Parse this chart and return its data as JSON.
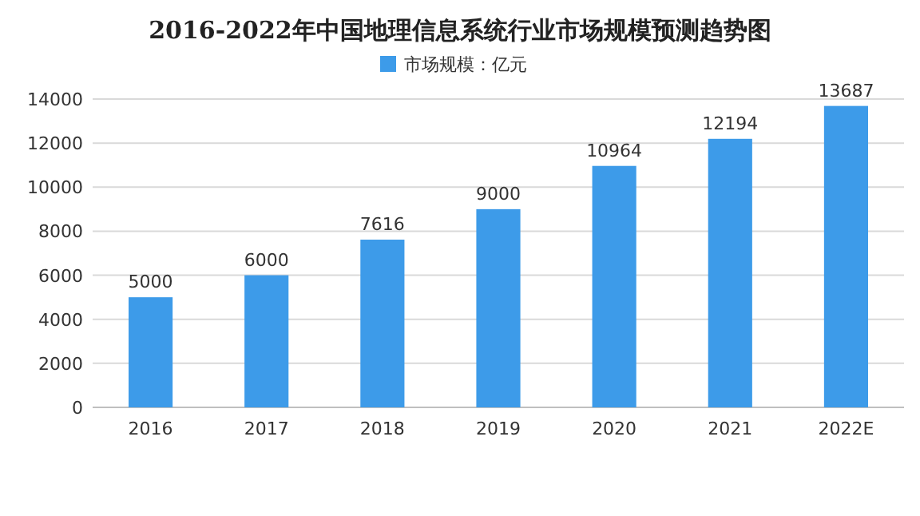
{
  "chart_data": {
    "type": "bar",
    "title": "2016-2022年中国地理信息系统行业市场规模预测趋势图",
    "categories": [
      "2016",
      "2017",
      "2018",
      "2019",
      "2020",
      "2021",
      "2022E"
    ],
    "series": [
      {
        "name": "市场规模：亿元",
        "color": "#3d9be9",
        "values": [
          5000,
          6000,
          7616,
          9000,
          10964,
          12194,
          13687
        ]
      }
    ],
    "ylim": [
      0,
      14000
    ],
    "yticks": [
      0,
      2000,
      4000,
      6000,
      8000,
      10000,
      12000,
      14000
    ],
    "grid": "y",
    "legend": "top",
    "data_labels": true
  }
}
